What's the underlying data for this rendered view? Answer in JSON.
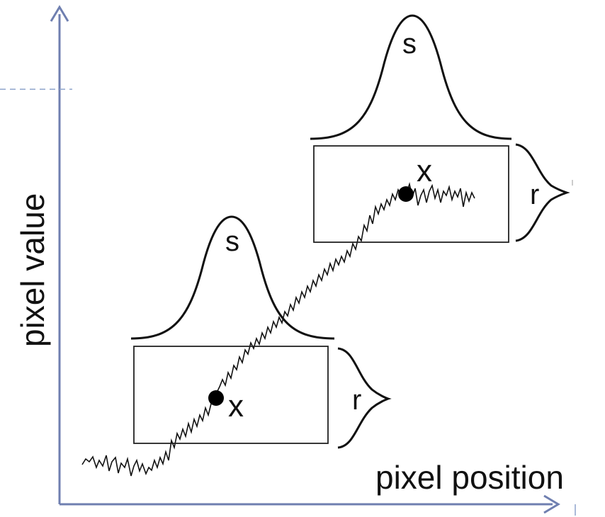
{
  "axes": {
    "x_label": "pixel position",
    "y_label": "pixel value",
    "color": "#6f7fb0"
  },
  "kernels": {
    "upper": {
      "spatial_label": "s",
      "range_label": "r",
      "center_label": "x"
    },
    "lower": {
      "spatial_label": "s",
      "range_label": "r",
      "center_label": "x"
    }
  },
  "colors": {
    "ink": "#111111",
    "axis": "#6f7fb0",
    "guide": "#8ea3cc"
  }
}
